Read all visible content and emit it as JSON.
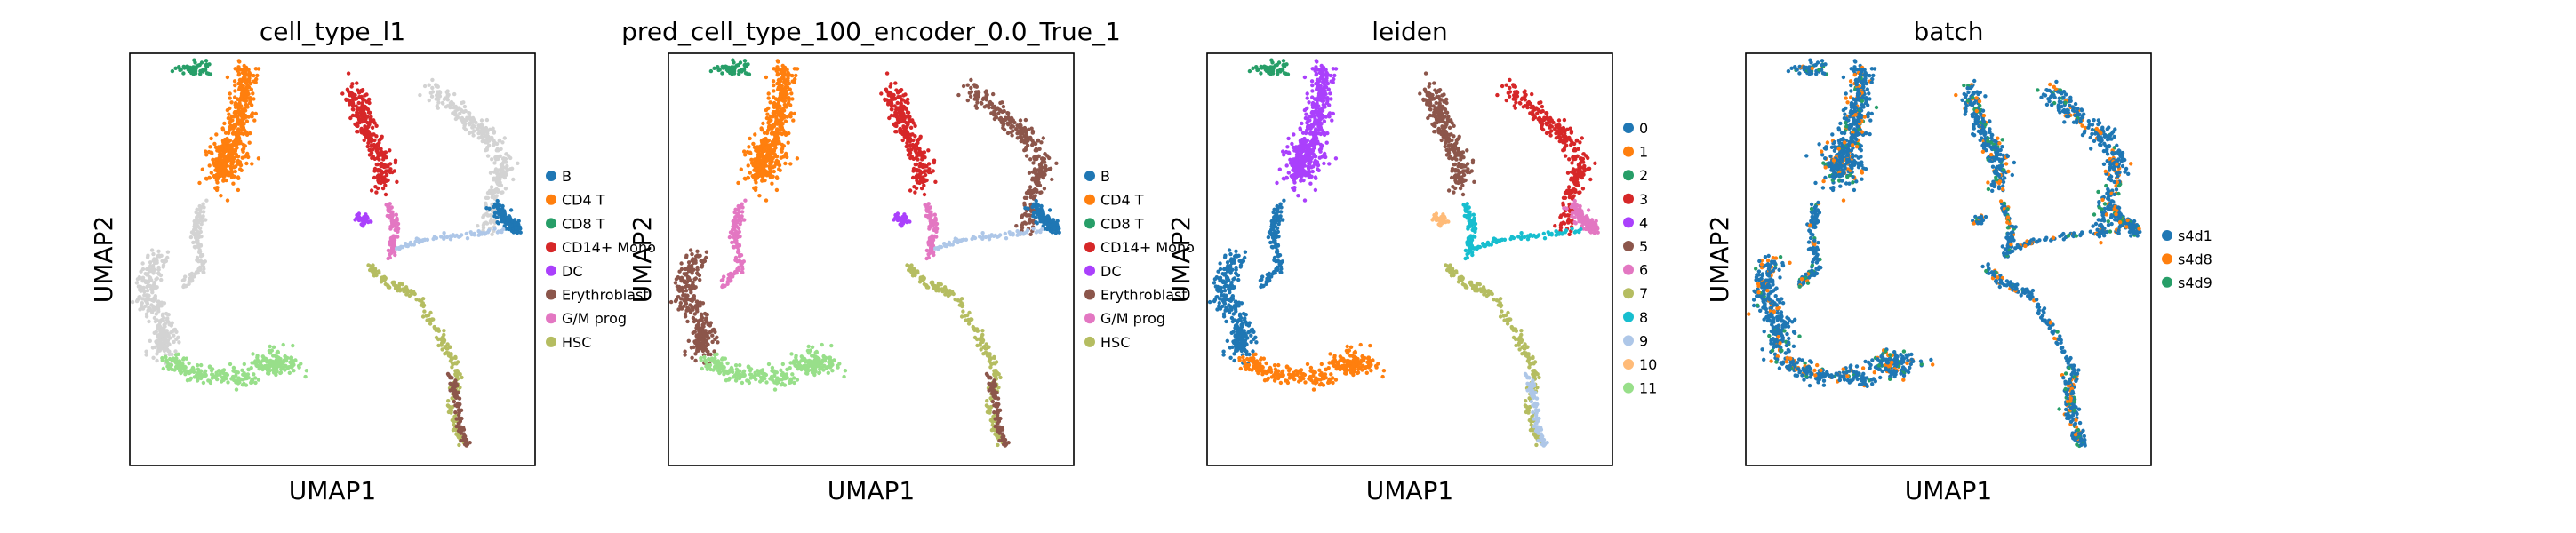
{
  "figure": {
    "panels": [
      {
        "title": "cell_type_l1",
        "xlabel": "UMAP1",
        "ylabel": "UMAP2",
        "legend": [
          {
            "label": "B",
            "color": "#1f77b4"
          },
          {
            "label": "CD4 T",
            "color": "#ff7f0e"
          },
          {
            "label": "CD8 T",
            "color": "#279e68"
          },
          {
            "label": "CD14+ Mono",
            "color": "#d62728"
          },
          {
            "label": "DC",
            "color": "#aa40fc"
          },
          {
            "label": "Erythroblast",
            "color": "#8c564b"
          },
          {
            "label": "G/M prog",
            "color": "#e377c2"
          },
          {
            "label": "HSC",
            "color": "#b5bd61"
          }
        ]
      },
      {
        "title": "pred_cell_type_100_encoder_0.0_True_1",
        "xlabel": "UMAP1",
        "ylabel": "UMAP2",
        "legend": [
          {
            "label": "B",
            "color": "#1f77b4"
          },
          {
            "label": "CD4 T",
            "color": "#ff7f0e"
          },
          {
            "label": "CD8 T",
            "color": "#279e68"
          },
          {
            "label": "CD14+ Mono",
            "color": "#d62728"
          },
          {
            "label": "DC",
            "color": "#aa40fc"
          },
          {
            "label": "Erythroblast",
            "color": "#8c564b"
          },
          {
            "label": "G/M prog",
            "color": "#e377c2"
          },
          {
            "label": "HSC",
            "color": "#b5bd61"
          }
        ]
      },
      {
        "title": "leiden",
        "xlabel": "UMAP1",
        "ylabel": "UMAP2",
        "legend": [
          {
            "label": "0",
            "color": "#1f77b4"
          },
          {
            "label": "1",
            "color": "#ff7f0e"
          },
          {
            "label": "2",
            "color": "#279e68"
          },
          {
            "label": "3",
            "color": "#d62728"
          },
          {
            "label": "4",
            "color": "#aa40fc"
          },
          {
            "label": "5",
            "color": "#8c564b"
          },
          {
            "label": "6",
            "color": "#e377c2"
          },
          {
            "label": "7",
            "color": "#b5bd61"
          },
          {
            "label": "8",
            "color": "#17becf"
          },
          {
            "label": "9",
            "color": "#aec7e8"
          },
          {
            "label": "10",
            "color": "#ffbb78"
          },
          {
            "label": "11",
            "color": "#98df8a"
          }
        ]
      },
      {
        "title": "batch",
        "xlabel": "UMAP1",
        "ylabel": "UMAP2",
        "legend": [
          {
            "label": "s4d1",
            "color": "#1f77b4"
          },
          {
            "label": "s4d8",
            "color": "#ff7f0e"
          },
          {
            "label": "s4d9",
            "color": "#279e68"
          }
        ]
      }
    ]
  },
  "chart_data": [
    {
      "type": "scatter",
      "title": "cell_type_l1",
      "xlabel": "UMAP1",
      "ylabel": "UMAP2",
      "xticks": "none",
      "yticks": "none",
      "grid": false,
      "legend_position": "right",
      "categories": [
        "B",
        "CD4 T",
        "CD8 T",
        "CD14+ Mono",
        "DC",
        "Erythroblast",
        "G/M prog",
        "HSC"
      ],
      "unlabeled_color": "#d3d3d3"
    },
    {
      "type": "scatter",
      "title": "pred_cell_type_100_encoder_0.0_True_1",
      "xlabel": "UMAP1",
      "ylabel": "UMAP2",
      "xticks": "none",
      "yticks": "none",
      "grid": false,
      "legend_position": "right",
      "categories": [
        "B",
        "CD4 T",
        "CD8 T",
        "CD14+ Mono",
        "DC",
        "Erythroblast",
        "G/M prog",
        "HSC"
      ]
    },
    {
      "type": "scatter",
      "title": "leiden",
      "xlabel": "UMAP1",
      "ylabel": "UMAP2",
      "xticks": "none",
      "yticks": "none",
      "grid": false,
      "legend_position": "right",
      "categories": [
        "0",
        "1",
        "2",
        "3",
        "4",
        "5",
        "6",
        "7",
        "8",
        "9",
        "10",
        "11"
      ]
    },
    {
      "type": "scatter",
      "title": "batch",
      "xlabel": "UMAP1",
      "ylabel": "UMAP2",
      "xticks": "none",
      "yticks": "none",
      "grid": false,
      "legend_position": "right",
      "categories": [
        "s4d1",
        "s4d8",
        "s4d9"
      ]
    }
  ]
}
